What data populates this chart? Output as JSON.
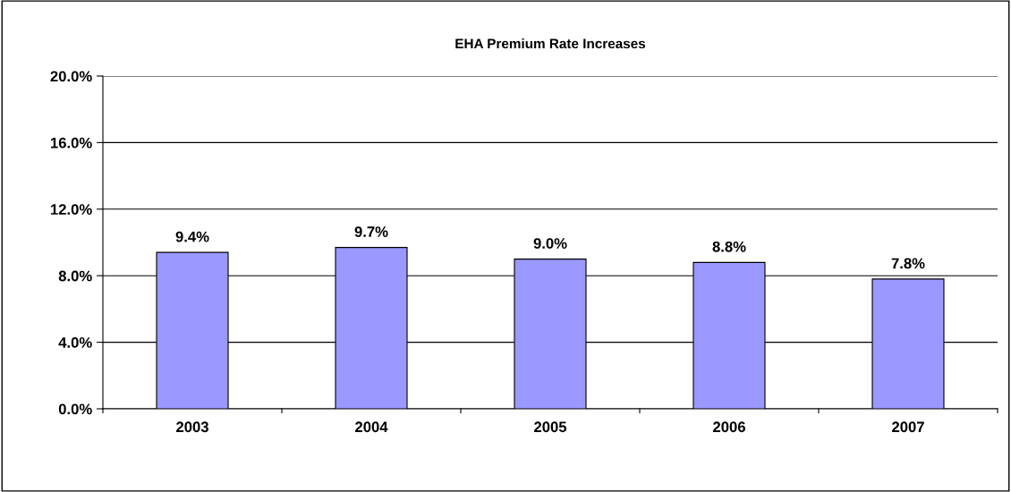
{
  "chart_data": {
    "type": "bar",
    "title": "EHA Premium Rate Increases",
    "categories": [
      "2003",
      "2004",
      "2005",
      "2006",
      "2007"
    ],
    "values": [
      9.4,
      9.7,
      9.0,
      8.8,
      7.8
    ],
    "value_labels": [
      "9.4%",
      "9.7%",
      "9.0%",
      "8.8%",
      "7.8%"
    ],
    "color": "#9999ff",
    "ylim": [
      0,
      20
    ],
    "yticks": [
      {
        "value": 0,
        "label": "0.0%"
      },
      {
        "value": 4,
        "label": "4.0%"
      },
      {
        "value": 8,
        "label": "8.0%"
      },
      {
        "value": 12,
        "label": "12.0%"
      },
      {
        "value": 16,
        "label": "16.0%"
      },
      {
        "value": 20,
        "label": "20.0%"
      }
    ],
    "grid": "y",
    "legend": false
  }
}
